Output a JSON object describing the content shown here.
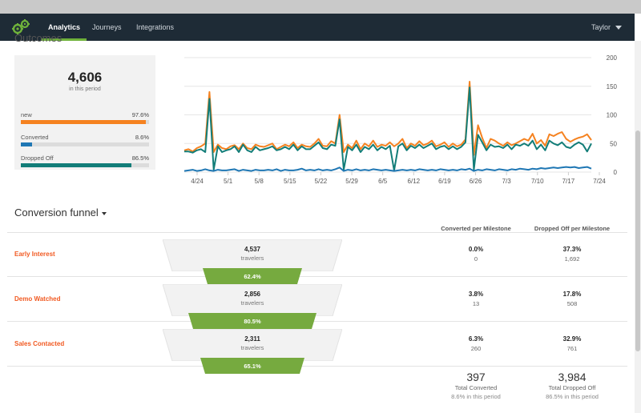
{
  "nav": {
    "tabs": [
      {
        "label": "Analytics",
        "active": true
      },
      {
        "label": "Journeys",
        "active": false
      },
      {
        "label": "Integrations",
        "active": false
      }
    ],
    "user": "Taylor"
  },
  "outcomes": {
    "title": "Outcomes",
    "total": "4,606",
    "total_sub": "in this period",
    "metrics": [
      {
        "label": "new",
        "value": "97.6%",
        "fraction": 0.976,
        "color": "#f58220"
      },
      {
        "label": "Converted",
        "value": "8.6%",
        "fraction": 0.086,
        "color": "#1f77b4"
      },
      {
        "label": "Dropped Off",
        "value": "86.5%",
        "fraction": 0.865,
        "color": "#127d78"
      }
    ]
  },
  "chart_data": {
    "type": "line",
    "x_tick_labels": [
      "4/24",
      "5/1",
      "5/8",
      "5/15",
      "5/22",
      "5/29",
      "6/5",
      "6/12",
      "6/19",
      "6/26",
      "7/3",
      "7/10",
      "7/17",
      "7/24"
    ],
    "y_ticks": [
      0,
      50,
      100,
      150,
      200
    ],
    "ylim": [
      0,
      200
    ],
    "y_axis_side": "right",
    "grid": true,
    "series": [
      {
        "color": "#f58220",
        "values": [
          38,
          40,
          36,
          42,
          45,
          50,
          140,
          35,
          48,
          42,
          40,
          45,
          47,
          40,
          50,
          42,
          40,
          48,
          45,
          44,
          47,
          50,
          40,
          44,
          48,
          45,
          52,
          42,
          48,
          45,
          44,
          50,
          58,
          46,
          45,
          54,
          50,
          100,
          35,
          48,
          42,
          55,
          40,
          50,
          45,
          55,
          44,
          48,
          46,
          52,
          45,
          50,
          58,
          42,
          50,
          46,
          54,
          47,
          50,
          55,
          45,
          48,
          52,
          44,
          50,
          45,
          48,
          57,
          158,
          30,
          82,
          60,
          42,
          58,
          55,
          50,
          46,
          52,
          47,
          50,
          54,
          58,
          55,
          67,
          50,
          56,
          46,
          66,
          63,
          67,
          70,
          58,
          53,
          57,
          60,
          62,
          66,
          56
        ]
      },
      {
        "color": "#127d78",
        "values": [
          36,
          36,
          34,
          38,
          40,
          35,
          128,
          4,
          45,
          35,
          38,
          40,
          45,
          35,
          48,
          38,
          35,
          44,
          38,
          40,
          42,
          45,
          38,
          40,
          44,
          40,
          48,
          38,
          45,
          40,
          40,
          46,
          52,
          42,
          40,
          48,
          46,
          92,
          4,
          44,
          38,
          48,
          35,
          44,
          40,
          48,
          38,
          44,
          40,
          46,
          3,
          45,
          50,
          38,
          46,
          42,
          48,
          42,
          46,
          50,
          40,
          44,
          46,
          40,
          45,
          40,
          44,
          52,
          148,
          4,
          65,
          52,
          38,
          48,
          44,
          45,
          42,
          48,
          40,
          48,
          46,
          50,
          46,
          55,
          40,
          48,
          38,
          55,
          50,
          47,
          52,
          44,
          42,
          48,
          52,
          48,
          36,
          50
        ]
      },
      {
        "color": "#1f77b4",
        "values": [
          2,
          3,
          4,
          2,
          3,
          5,
          3,
          2,
          4,
          3,
          3,
          4,
          5,
          2,
          4,
          3,
          2,
          4,
          3,
          3,
          4,
          3,
          5,
          2,
          4,
          3,
          3,
          4,
          6,
          3,
          4,
          3,
          5,
          3,
          4,
          3,
          5,
          8,
          2,
          4,
          3,
          5,
          3,
          4,
          3,
          5,
          4,
          3,
          4,
          3,
          2,
          3,
          4,
          3,
          4,
          3,
          5,
          4,
          3,
          4,
          3,
          5,
          4,
          3,
          4,
          3,
          5,
          4,
          6,
          2,
          4,
          3,
          5,
          4,
          3,
          5,
          4,
          3,
          5,
          4,
          6,
          5,
          4,
          6,
          5,
          7,
          6,
          7,
          8,
          7,
          8,
          9,
          8,
          9,
          7,
          8,
          9,
          6
        ]
      }
    ]
  },
  "funnel": {
    "title": "Conversion funnel",
    "col_converted": "Converted per Milestone",
    "col_dropped": "Dropped Off per Milestone",
    "stages": [
      {
        "name": "Early Interest",
        "travelers": "4,537",
        "unit": "travelers",
        "rate": "62.4%",
        "conv_pct": "0.0%",
        "conv_count": "0",
        "drop_pct": "37.3%",
        "drop_count": "1,692"
      },
      {
        "name": "Demo Watched",
        "travelers": "2,856",
        "unit": "travelers",
        "rate": "80.5%",
        "conv_pct": "3.8%",
        "conv_count": "13",
        "drop_pct": "17.8%",
        "drop_count": "508"
      },
      {
        "name": "Sales Contacted",
        "travelers": "2,311",
        "unit": "travelers",
        "rate": "65.1%",
        "conv_pct": "6.3%",
        "conv_count": "260",
        "drop_pct": "32.9%",
        "drop_count": "761"
      }
    ],
    "totals": {
      "converted": "397",
      "converted_label": "Total Converted",
      "converted_sub": "8.6% in this period",
      "dropped": "3,984",
      "dropped_label": "Total Dropped Off",
      "dropped_sub": "86.5% in this period"
    }
  },
  "colors": {
    "nav_bg": "#1e2b36",
    "accent_green": "#6fb23b",
    "funnel_green": "#76aa3f",
    "stage_orange": "#f15a22"
  }
}
